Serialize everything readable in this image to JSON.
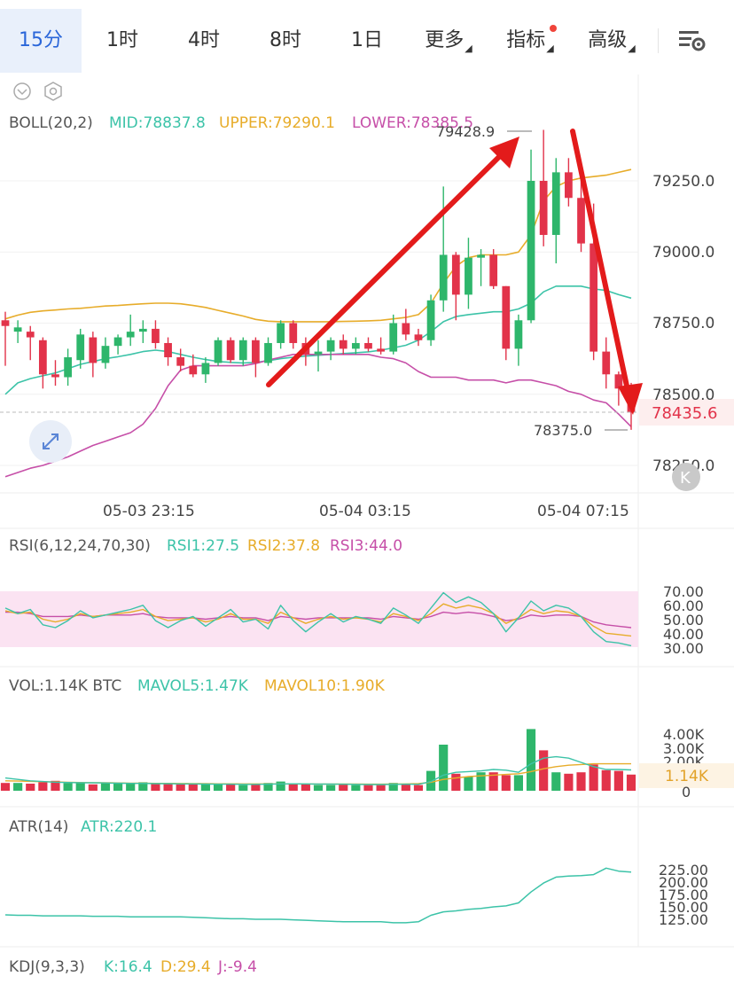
{
  "toolbar": {
    "tabs": [
      "15分",
      "1时",
      "4时",
      "8时",
      "1日"
    ],
    "active_index": 0,
    "more_label": "更多",
    "indicators_label": "指标",
    "advanced_label": "高级"
  },
  "colors": {
    "up": "#2eb66b",
    "down": "#e2334a",
    "mid": "#3cc3a8",
    "upper": "#e7ac2a",
    "lower": "#c64fa8",
    "accent": "#2a66d9",
    "arrow": "#e31b1b"
  },
  "main": {
    "boll_title": "BOLL(20,2)",
    "mid_text": "MID:78837.8",
    "upper_text": "UPPER:79290.1",
    "lower_text": "LOWER:78385.5",
    "axis_ticks": [
      "79250.0",
      "79000.0",
      "78750.0",
      "78500.0",
      "78250.0"
    ],
    "current_price": "78435.6",
    "high_label": "79428.9",
    "low_label": "78375.0",
    "x_labels": [
      "05-03 23:15",
      "05-04 03:15",
      "05-04 07:15"
    ]
  },
  "rsi": {
    "title": "RSI(6,12,24,70,30)",
    "rsi1_text": "RSI1:27.5",
    "rsi2_text": "RSI2:37.8",
    "rsi3_text": "RSI3:44.0",
    "ticks": [
      "70.00",
      "60.00",
      "50.00",
      "40.00",
      "30.00"
    ]
  },
  "vol": {
    "title": "VOL:1.14K BTC",
    "ma5_text": "MAVOL5:1.47K",
    "ma10_text": "MAVOL10:1.90K",
    "ticks": [
      "4.00K",
      "3.00K",
      "2.00K",
      "0"
    ],
    "current": "1.14K"
  },
  "atr": {
    "title": "ATR(14)",
    "value_text": "ATR:220.1",
    "ticks": [
      "225.00",
      "200.00",
      "175.00",
      "150.00",
      "125.00"
    ]
  },
  "kdj": {
    "title": "KDJ(9,3,3)",
    "k_text": "K:16.4",
    "d_text": "D:29.4",
    "j_text": "J:-9.4"
  },
  "chart_data": {
    "type": "candlestick",
    "interval": "15m",
    "y_range": [
      78200,
      79430
    ],
    "candles": [
      {
        "o": 78760,
        "h": 78790,
        "l": 78600,
        "c": 78740
      },
      {
        "o": 78720,
        "h": 78760,
        "l": 78680,
        "c": 78735
      },
      {
        "o": 78720,
        "h": 78740,
        "l": 78620,
        "c": 78700
      },
      {
        "o": 78690,
        "h": 78700,
        "l": 78520,
        "c": 78570
      },
      {
        "o": 78570,
        "h": 78620,
        "l": 78530,
        "c": 78560
      },
      {
        "o": 78560,
        "h": 78660,
        "l": 78530,
        "c": 78630
      },
      {
        "o": 78620,
        "h": 78730,
        "l": 78590,
        "c": 78710
      },
      {
        "o": 78700,
        "h": 78720,
        "l": 78560,
        "c": 78610
      },
      {
        "o": 78610,
        "h": 78700,
        "l": 78590,
        "c": 78670
      },
      {
        "o": 78670,
        "h": 78710,
        "l": 78640,
        "c": 78700
      },
      {
        "o": 78700,
        "h": 78780,
        "l": 78670,
        "c": 78720
      },
      {
        "o": 78720,
        "h": 78760,
        "l": 78680,
        "c": 78730
      },
      {
        "o": 78730,
        "h": 78760,
        "l": 78660,
        "c": 78680
      },
      {
        "o": 78680,
        "h": 78700,
        "l": 78600,
        "c": 78630
      },
      {
        "o": 78630,
        "h": 78660,
        "l": 78580,
        "c": 78600
      },
      {
        "o": 78600,
        "h": 78640,
        "l": 78560,
        "c": 78570
      },
      {
        "o": 78570,
        "h": 78630,
        "l": 78540,
        "c": 78610
      },
      {
        "o": 78610,
        "h": 78700,
        "l": 78600,
        "c": 78690
      },
      {
        "o": 78690,
        "h": 78700,
        "l": 78610,
        "c": 78620
      },
      {
        "o": 78620,
        "h": 78700,
        "l": 78600,
        "c": 78690
      },
      {
        "o": 78690,
        "h": 78700,
        "l": 78560,
        "c": 78610
      },
      {
        "o": 78610,
        "h": 78700,
        "l": 78600,
        "c": 78680
      },
      {
        "o": 78680,
        "h": 78760,
        "l": 78660,
        "c": 78750
      },
      {
        "o": 78750,
        "h": 78760,
        "l": 78660,
        "c": 78680
      },
      {
        "o": 78680,
        "h": 78700,
        "l": 78600,
        "c": 78640
      },
      {
        "o": 78640,
        "h": 78690,
        "l": 78580,
        "c": 78650
      },
      {
        "o": 78650,
        "h": 78700,
        "l": 78620,
        "c": 78690
      },
      {
        "o": 78690,
        "h": 78710,
        "l": 78640,
        "c": 78660
      },
      {
        "o": 78660,
        "h": 78700,
        "l": 78640,
        "c": 78680
      },
      {
        "o": 78680,
        "h": 78700,
        "l": 78650,
        "c": 78660
      },
      {
        "o": 78660,
        "h": 78700,
        "l": 78640,
        "c": 78650
      },
      {
        "o": 78650,
        "h": 78780,
        "l": 78640,
        "c": 78750
      },
      {
        "o": 78750,
        "h": 78800,
        "l": 78690,
        "c": 78710
      },
      {
        "o": 78710,
        "h": 78730,
        "l": 78670,
        "c": 78690
      },
      {
        "o": 78690,
        "h": 78850,
        "l": 78670,
        "c": 78830
      },
      {
        "o": 78830,
        "h": 79230,
        "l": 78790,
        "c": 78990
      },
      {
        "o": 78990,
        "h": 79000,
        "l": 78760,
        "c": 78850
      },
      {
        "o": 78850,
        "h": 79050,
        "l": 78800,
        "c": 78980
      },
      {
        "o": 78980,
        "h": 79010,
        "l": 78880,
        "c": 78990
      },
      {
        "o": 78990,
        "h": 79010,
        "l": 78870,
        "c": 78880
      },
      {
        "o": 78880,
        "h": 78880,
        "l": 78620,
        "c": 78660
      },
      {
        "o": 78660,
        "h": 78780,
        "l": 78600,
        "c": 78760
      },
      {
        "o": 78760,
        "h": 79360,
        "l": 78750,
        "c": 79250
      },
      {
        "o": 79250,
        "h": 79429,
        "l": 79020,
        "c": 79060
      },
      {
        "o": 79060,
        "h": 79330,
        "l": 78960,
        "c": 79280
      },
      {
        "o": 79280,
        "h": 79330,
        "l": 79160,
        "c": 79190
      },
      {
        "o": 79190,
        "h": 79260,
        "l": 79000,
        "c": 79030
      },
      {
        "o": 79030,
        "h": 79170,
        "l": 78620,
        "c": 78650
      },
      {
        "o": 78650,
        "h": 78700,
        "l": 78520,
        "c": 78570
      },
      {
        "o": 78570,
        "h": 78580,
        "l": 78460,
        "c": 78520
      },
      {
        "o": 78520,
        "h": 78540,
        "l": 78375,
        "c": 78436
      }
    ],
    "boll": {
      "upper": [
        78765,
        78778,
        78788,
        78793,
        78796,
        78800,
        78802,
        78806,
        78810,
        78812,
        78815,
        78818,
        78820,
        78820,
        78818,
        78812,
        78805,
        78795,
        78785,
        78775,
        78763,
        78757,
        78755,
        78755,
        78755,
        78755,
        78755,
        78756,
        78757,
        78758,
        78760,
        78765,
        78770,
        78780,
        78820,
        78890,
        78950,
        78980,
        78990,
        78990,
        78990,
        79000,
        79060,
        79180,
        79230,
        79250,
        79260,
        79265,
        79270,
        79280,
        79290
      ],
      "mid": [
        78500,
        78540,
        78555,
        78565,
        78575,
        78590,
        78605,
        78615,
        78625,
        78632,
        78640,
        78650,
        78655,
        78650,
        78640,
        78630,
        78622,
        78615,
        78612,
        78610,
        78612,
        78618,
        78625,
        78630,
        78634,
        78637,
        78640,
        78643,
        78646,
        78649,
        78655,
        78663,
        78672,
        78690,
        78720,
        78755,
        78773,
        78780,
        78785,
        78790,
        78790,
        78800,
        78820,
        78860,
        78880,
        78880,
        78880,
        78870,
        78865,
        78850,
        78838
      ],
      "lower": [
        78210,
        78225,
        78240,
        78250,
        78265,
        78280,
        78300,
        78320,
        78335,
        78350,
        78365,
        78395,
        78450,
        78530,
        78585,
        78600,
        78600,
        78600,
        78600,
        78600,
        78608,
        78620,
        78630,
        78640,
        78640,
        78640,
        78640,
        78640,
        78640,
        78640,
        78630,
        78625,
        78610,
        78580,
        78560,
        78560,
        78560,
        78550,
        78550,
        78550,
        78540,
        78550,
        78550,
        78540,
        78530,
        78510,
        78500,
        78480,
        78470,
        78430,
        78386
      ]
    },
    "rsi": {
      "rsi1": [
        58,
        54,
        57,
        46,
        44,
        49,
        56,
        51,
        53,
        55,
        57,
        60,
        49,
        44,
        49,
        52,
        45,
        51,
        57,
        48,
        50,
        43,
        60,
        49,
        41,
        48,
        54,
        48,
        52,
        50,
        47,
        58,
        53,
        47,
        58,
        69,
        62,
        66,
        62,
        54,
        41,
        51,
        63,
        56,
        60,
        58,
        52,
        41,
        34,
        33,
        31
      ],
      "rsi2": [
        56,
        54,
        55,
        50,
        48,
        50,
        54,
        52,
        53,
        54,
        55,
        57,
        52,
        49,
        50,
        51,
        48,
        50,
        54,
        50,
        50,
        47,
        55,
        51,
        47,
        50,
        52,
        50,
        51,
        50,
        48,
        54,
        52,
        49,
        54,
        61,
        58,
        60,
        58,
        54,
        47,
        51,
        57,
        54,
        56,
        55,
        52,
        45,
        40,
        39,
        38
      ],
      "rsi3": [
        55,
        55,
        54,
        52,
        52,
        52,
        53,
        52,
        53,
        53,
        53,
        54,
        52,
        51,
        51,
        51,
        50,
        51,
        52,
        51,
        51,
        49,
        52,
        51,
        50,
        51,
        51,
        51,
        51,
        51,
        50,
        52,
        51,
        50,
        52,
        55,
        54,
        55,
        54,
        52,
        49,
        50,
        53,
        52,
        53,
        53,
        52,
        48,
        46,
        45,
        44
      ]
    },
    "volume": {
      "values": [
        0.55,
        0.55,
        0.5,
        0.6,
        0.7,
        0.55,
        0.55,
        0.45,
        0.55,
        0.5,
        0.5,
        0.6,
        0.5,
        0.5,
        0.45,
        0.45,
        0.45,
        0.5,
        0.5,
        0.4,
        0.45,
        0.55,
        0.65,
        0.5,
        0.45,
        0.4,
        0.4,
        0.45,
        0.4,
        0.4,
        0.4,
        0.55,
        0.5,
        0.4,
        1.4,
        3.25,
        1.2,
        1.0,
        1.3,
        1.3,
        1.1,
        1.1,
        4.35,
        2.85,
        1.3,
        1.2,
        1.3,
        1.85,
        1.45,
        1.4,
        1.14
      ],
      "mavol5": [
        0.9,
        0.8,
        0.7,
        0.65,
        0.6,
        0.58,
        0.56,
        0.56,
        0.55,
        0.53,
        0.52,
        0.52,
        0.5,
        0.5,
        0.48,
        0.48,
        0.47,
        0.46,
        0.46,
        0.45,
        0.45,
        0.46,
        0.48,
        0.49,
        0.48,
        0.47,
        0.47,
        0.46,
        0.45,
        0.44,
        0.44,
        0.45,
        0.46,
        0.45,
        0.65,
        1.1,
        1.3,
        1.35,
        1.4,
        1.5,
        1.45,
        1.3,
        1.9,
        2.3,
        2.4,
        2.3,
        2.0,
        1.7,
        1.5,
        1.5,
        1.47
      ],
      "mavol10": [
        0.7,
        0.68,
        0.66,
        0.64,
        0.62,
        0.6,
        0.58,
        0.57,
        0.56,
        0.55,
        0.54,
        0.53,
        0.52,
        0.52,
        0.51,
        0.5,
        0.5,
        0.49,
        0.49,
        0.48,
        0.48,
        0.48,
        0.48,
        0.48,
        0.48,
        0.47,
        0.47,
        0.47,
        0.47,
        0.46,
        0.46,
        0.47,
        0.48,
        0.5,
        0.6,
        0.8,
        0.9,
        1.0,
        1.05,
        1.1,
        1.15,
        1.2,
        1.35,
        1.55,
        1.7,
        1.8,
        1.85,
        1.9,
        1.9,
        1.9,
        1.9
      ]
    },
    "atr": [
      134,
      133,
      133,
      132,
      132,
      132,
      132,
      131,
      131,
      131,
      130,
      130,
      130,
      130,
      130,
      129,
      128,
      127,
      126,
      126,
      125,
      125,
      125,
      124,
      123,
      122,
      121,
      120,
      120,
      120,
      120,
      118,
      118,
      120,
      133,
      140,
      142,
      145,
      147,
      150,
      152,
      158,
      180,
      198,
      210,
      212,
      213,
      215,
      228,
      222,
      220
    ]
  }
}
